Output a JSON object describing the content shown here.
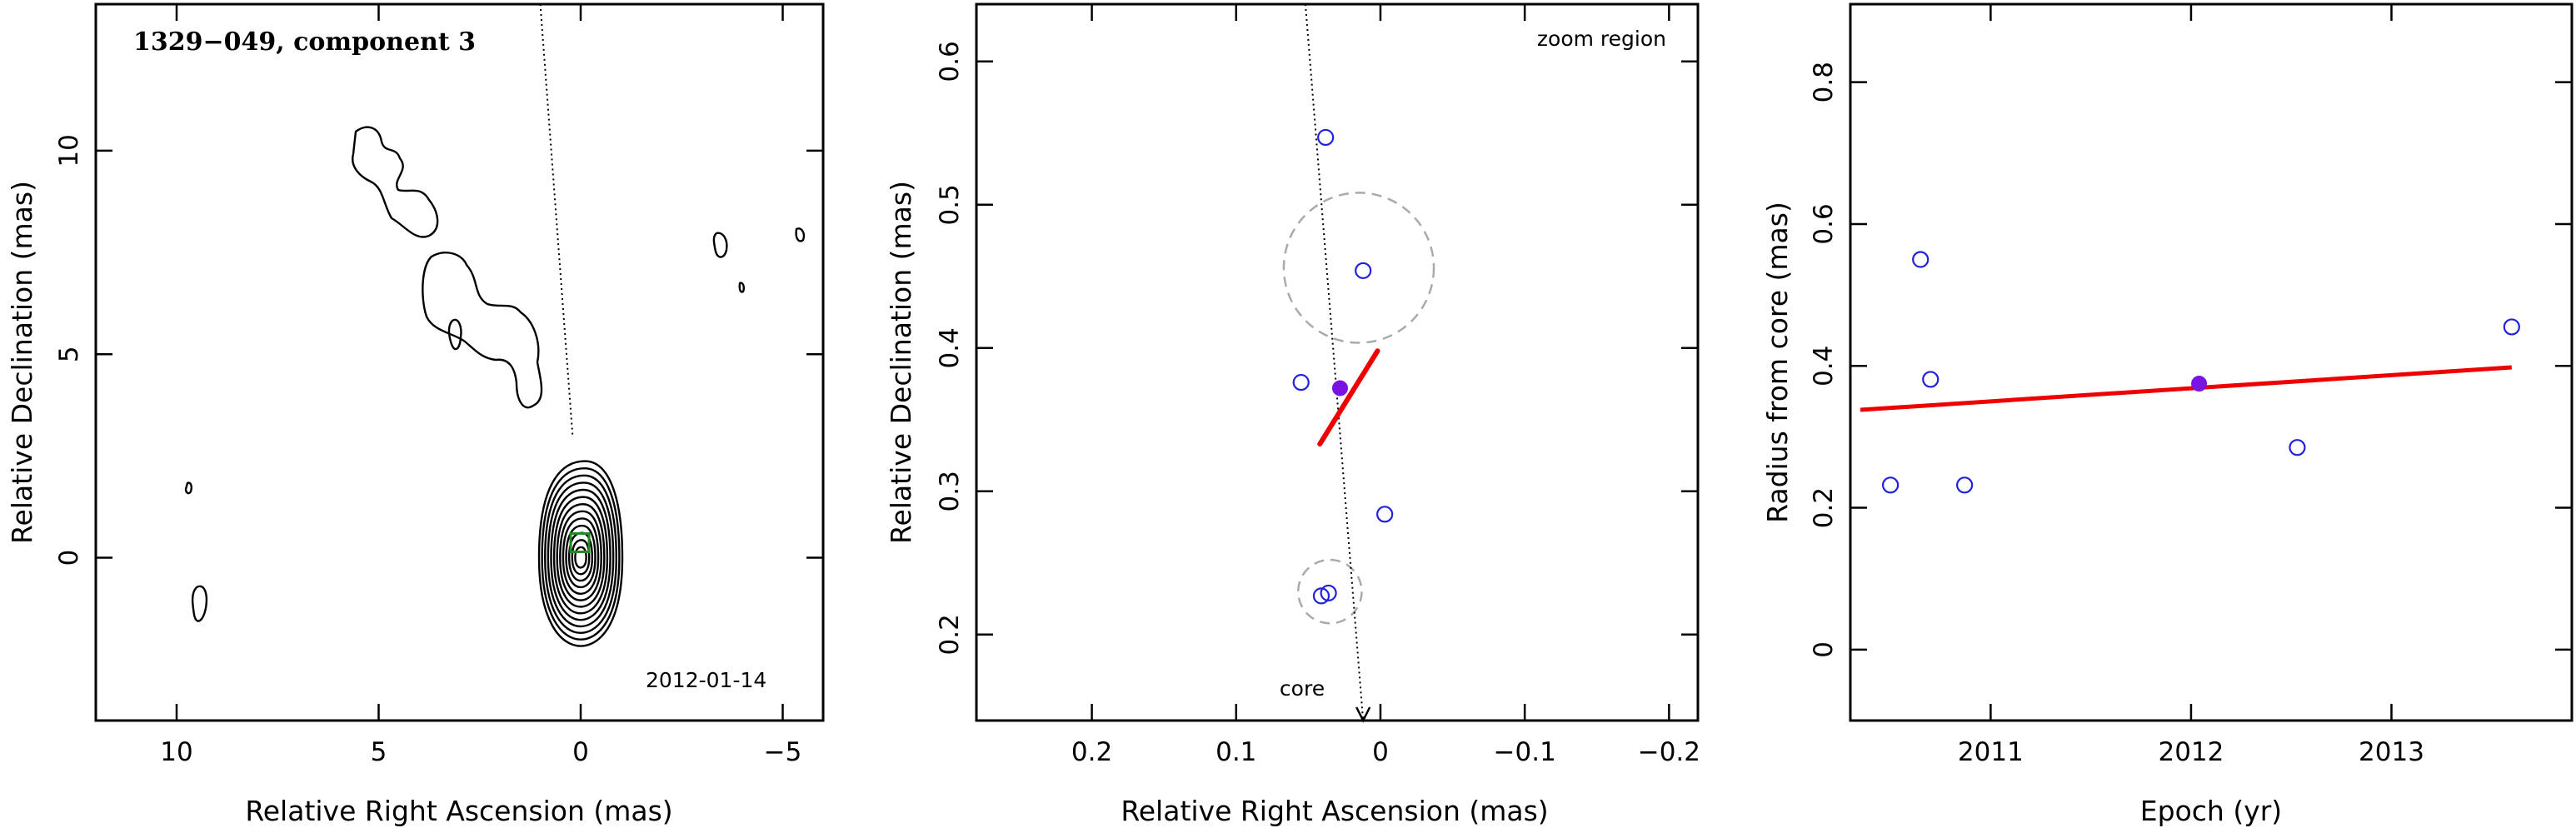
{
  "chart_data": [
    {
      "type": "contour",
      "title": "1329−049, component 3",
      "date_label": "2012-01-14",
      "xlabel": "Relative Right Ascension (mas)",
      "ylabel": "Relative Declination (mas)",
      "xlim": [
        12,
        -6
      ],
      "ylim": [
        -4,
        13.6
      ],
      "xticks": [
        10,
        5,
        0,
        -5
      ],
      "xtick_labels": [
        "10",
        "5",
        "0",
        "−5"
      ],
      "yticks": [
        0,
        5,
        10
      ],
      "ytick_labels": [
        "0",
        "5",
        "10"
      ],
      "trajectory_line": [
        [
          1,
          13.6
        ],
        [
          0.2,
          3.0
        ]
      ],
      "component_marker": [
        0.02,
        0.37
      ],
      "core_contour_peak": [
        0,
        0
      ],
      "core_contour_levels": 13
    },
    {
      "type": "scatter",
      "annotation": "zoom region",
      "core_label": "core",
      "xlabel": "Relative Right Ascension (mas)",
      "ylabel": "Relative Declination (mas)",
      "xlim": [
        0.28,
        -0.22
      ],
      "ylim": [
        0.14,
        0.64
      ],
      "xticks": [
        0.2,
        0.1,
        0,
        -0.1,
        -0.2
      ],
      "xtick_labels": [
        "0.2",
        "0.1",
        "0",
        "−0.1",
        "−0.2"
      ],
      "yticks": [
        0.2,
        0.3,
        0.4,
        0.5,
        0.6
      ],
      "ytick_labels": [
        "0.2",
        "0.3",
        "0.4",
        "0.5",
        "0.6"
      ],
      "series": [
        {
          "x": [
            0.038,
            0.055,
            0.012,
            -0.003,
            0.041,
            0.036
          ],
          "y": [
            0.547,
            0.376,
            0.454,
            0.284,
            0.227,
            0.229
          ]
        }
      ],
      "mean_position": [
        0.028,
        0.372
      ],
      "fit_segment": [
        [
          0.042,
          0.333
        ],
        [
          0.002,
          0.398
        ]
      ],
      "circles": [
        {
          "cx": 0.015,
          "cy": 0.456,
          "r": 0.052
        },
        {
          "cx": 0.035,
          "cy": 0.23,
          "r": 0.022
        }
      ],
      "trajectory_line": [
        [
          0.052,
          0.64
        ],
        [
          0.012,
          0.14
        ]
      ]
    },
    {
      "type": "scatter",
      "xlabel": "Epoch (yr)",
      "ylabel": "Radius from core (mas)",
      "xlim": [
        2010.3,
        2013.9
      ],
      "ylim": [
        -0.1,
        0.91
      ],
      "xticks": [
        2011,
        2012,
        2013
      ],
      "xtick_labels": [
        "2011",
        "2012",
        "2013"
      ],
      "yticks": [
        0,
        0.2,
        0.4,
        0.6,
        0.8
      ],
      "ytick_labels": [
        "0",
        "0.2",
        "0.4",
        "0.6",
        "0.8"
      ],
      "series": [
        {
          "x": [
            2010.5,
            2010.65,
            2010.7,
            2010.87,
            2012.53,
            2013.6
          ],
          "y": [
            0.232,
            0.55,
            0.381,
            0.232,
            0.285,
            0.455
          ]
        }
      ],
      "mean_point": [
        2012.04,
        0.375
      ],
      "fit_line": [
        [
          2010.35,
          0.338
        ],
        [
          2013.6,
          0.398
        ]
      ]
    }
  ]
}
